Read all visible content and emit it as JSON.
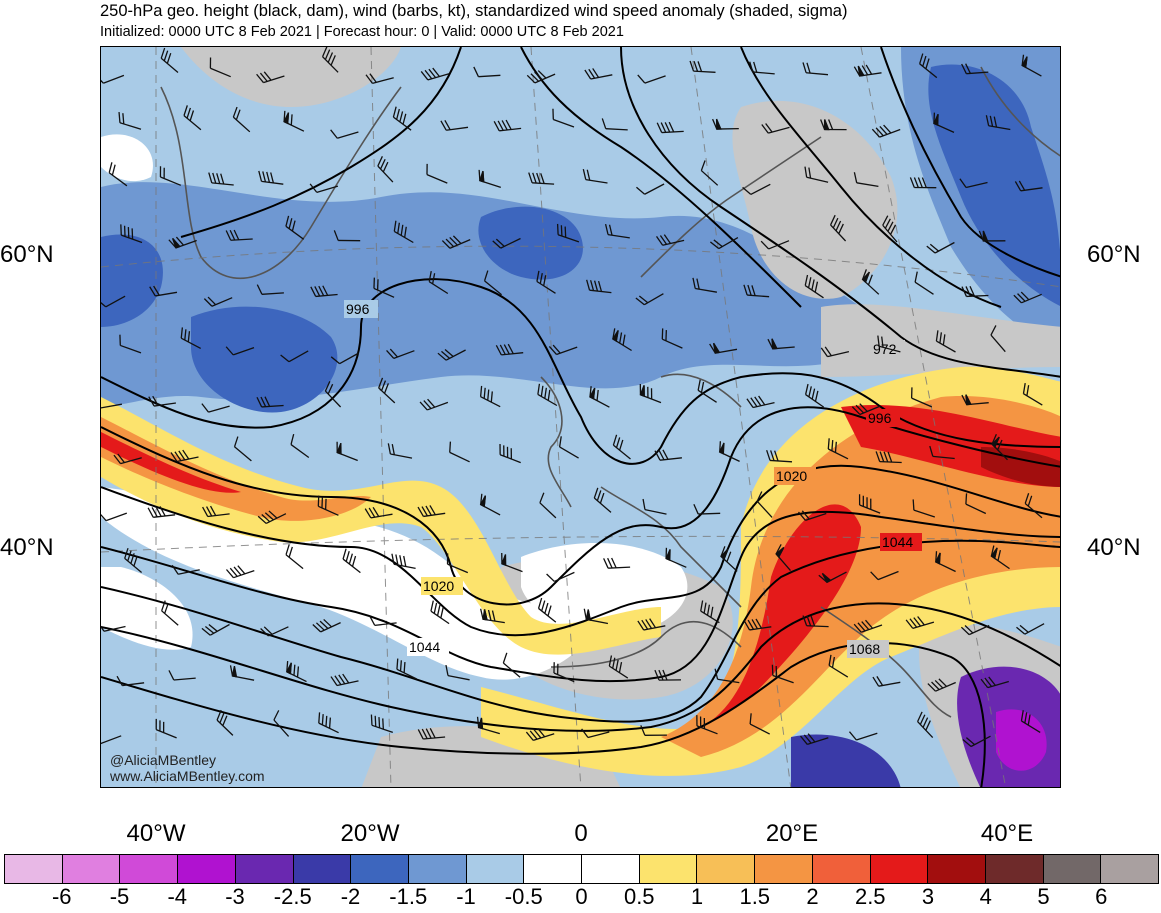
{
  "header": {
    "title": "250-hPa geo. height (black, dam), wind (barbs, kt), standardized wind speed anomaly (shaded, sigma)",
    "subtitle": "Initialized: 0000 UTC 8 Feb 2021 | Forecast hour: 0 | Valid: 0000 UTC 8 Feb 2021"
  },
  "map": {
    "lat_labels": [
      "60°N",
      "40°N"
    ],
    "lon_labels": [
      "40°W",
      "20°W",
      "0",
      "20°E",
      "40°E"
    ],
    "contour_labels": [
      "996",
      "972",
      "996",
      "1020",
      "1044",
      "1020",
      "1044",
      "1068"
    ],
    "credit_line1": "@AliciaMBentley",
    "credit_line2": "www.AliciaMBentley.com"
  },
  "colorbar": {
    "labels": [
      "-6",
      "-5",
      "-4",
      "-3",
      "-2.5",
      "-2",
      "-1.5",
      "-1",
      "-0.5",
      "0",
      "0.5",
      "1",
      "1.5",
      "2",
      "2.5",
      "3",
      "4",
      "5",
      "6"
    ],
    "colors": [
      "#e8b8e6",
      "#e07fe0",
      "#d04ad8",
      "#b012d0",
      "#6a28b0",
      "#3a3aa8",
      "#3d66be",
      "#6f98d2",
      "#a9cbe7",
      "#ffffff",
      "#ffffff",
      "#fce36d",
      "#f7bf57",
      "#f49543",
      "#f0603a",
      "#e41a1a",
      "#a20e0e",
      "#6e2a2a",
      "#726868",
      "#a9a0a0"
    ]
  }
}
